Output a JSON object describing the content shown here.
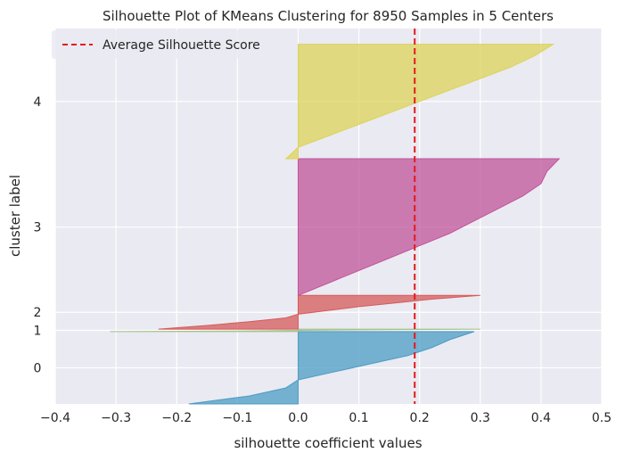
{
  "chart_data": {
    "type": "area",
    "title": "Silhouette Plot of KMeans Clustering for 8950 Samples in 5 Centers",
    "xlabel": "silhouette coefficient values",
    "ylabel": "cluster label",
    "xlim": [
      -0.4,
      0.5
    ],
    "x_ticks": [
      "−0.4",
      "−0.3",
      "−0.2",
      "−0.1",
      "0.0",
      "0.1",
      "0.2",
      "0.3",
      "0.4",
      "0.5"
    ],
    "x_tick_values": [
      -0.4,
      -0.3,
      -0.2,
      -0.1,
      0.0,
      0.1,
      0.2,
      0.3,
      0.4,
      0.5
    ],
    "y_ticks": [
      "0",
      "1",
      "2",
      "3",
      "4"
    ],
    "grid": true,
    "legend_position": "top-left",
    "average_silhouette": {
      "label": "Average Silhouette Score",
      "value": 0.192,
      "color": "#e41a1c"
    },
    "series": [
      {
        "name": "0",
        "color": "#4c9cc4",
        "samples_range": [
          0,
          1800
        ],
        "values": [
          -0.18,
          -0.08,
          -0.02,
          0.0,
          0.06,
          0.12,
          0.18,
          0.22,
          0.25,
          0.29
        ]
      },
      {
        "name": "1",
        "color": "#a5c48a",
        "samples_range": [
          1800,
          1860
        ],
        "values": [
          -0.31,
          -0.1,
          0.0,
          0.12,
          0.3
        ]
      },
      {
        "name": "2",
        "color": "#d65a5a",
        "samples_range": [
          1860,
          2700
        ],
        "values": [
          -0.23,
          -0.15,
          -0.08,
          -0.02,
          0.0,
          0.05,
          0.1,
          0.16,
          0.22,
          0.3
        ]
      },
      {
        "name": "3",
        "color": "#c0549a",
        "samples_range": [
          2700,
          6100
        ],
        "values": [
          0.0,
          0.05,
          0.1,
          0.15,
          0.2,
          0.25,
          0.29,
          0.33,
          0.37,
          0.4,
          0.41,
          0.43
        ]
      },
      {
        "name": "4",
        "color": "#dcd35a",
        "samples_range": [
          6100,
          8950
        ],
        "values": [
          -0.02,
          0.0,
          0.05,
          0.1,
          0.15,
          0.2,
          0.25,
          0.3,
          0.35,
          0.39,
          0.42
        ]
      }
    ]
  }
}
